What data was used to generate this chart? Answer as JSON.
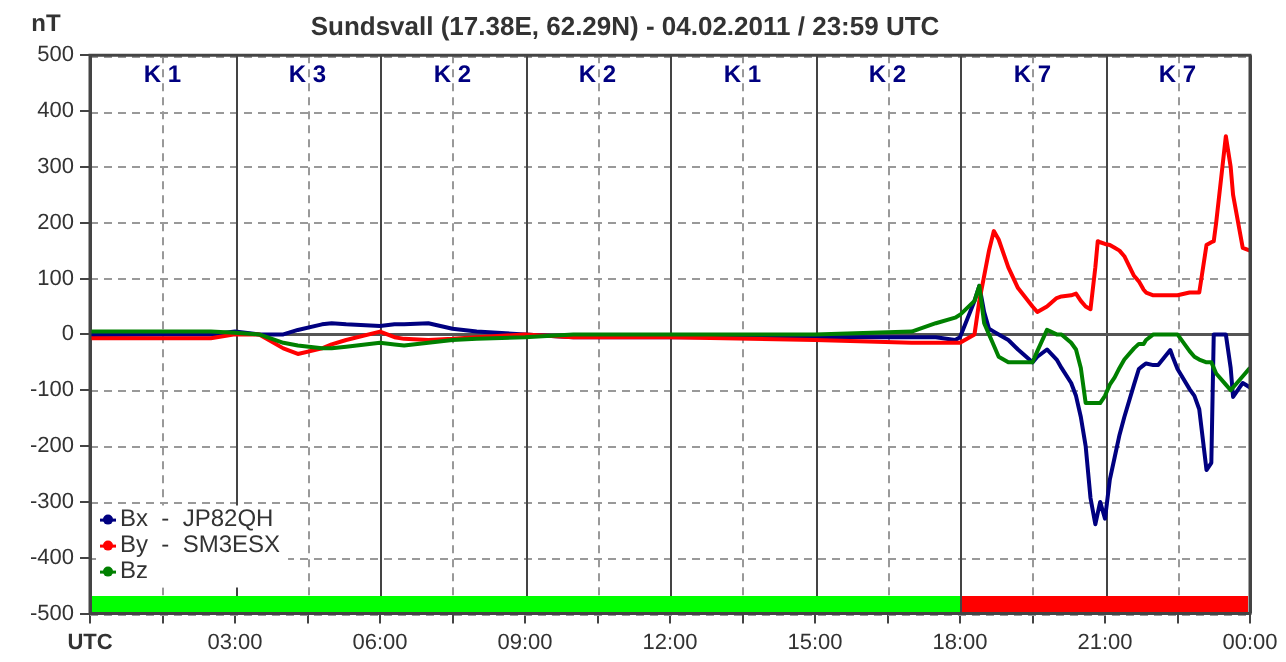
{
  "chart_data": {
    "type": "line",
    "title": "Sundsvall (17.38E, 62.29N) - 04.02.2011 / 23:59 UTC",
    "ylabel": "nT",
    "x": [
      0,
      1.5,
      2.5,
      3,
      3.5,
      4,
      4.3,
      4.8,
      5,
      5.3,
      6,
      6.3,
      6.5,
      7,
      7.5,
      8,
      9,
      10,
      12,
      15,
      17,
      17.5,
      17.9,
      18,
      18.3,
      18.4,
      18.5,
      18.6,
      18.7,
      18.8,
      19,
      19.2,
      19.5,
      19.6,
      19.8,
      20,
      20.1,
      20.3,
      20.4,
      20.5,
      20.6,
      20.7,
      20.8,
      20.85,
      20.9,
      21,
      21.1,
      21.2,
      21.3,
      21.4,
      21.6,
      21.7,
      21.8,
      21.85,
      22,
      22.1,
      22.35,
      22.4,
      22.5,
      22.75,
      22.85,
      22.95,
      23.1,
      23.2,
      23.25,
      23.3,
      23.5,
      23.6,
      23.65,
      23.85,
      24
    ],
    "series": [
      {
        "name": "Bx  -  JP82QH",
        "color": "#000080",
        "values": [
          -1,
          0,
          0,
          5,
          0,
          0,
          8,
          18,
          20,
          18,
          15,
          18,
          18,
          20,
          10,
          5,
          0,
          -5,
          -5,
          -5,
          -5,
          -5,
          -10,
          -5,
          60,
          87,
          40,
          10,
          5,
          0,
          -10,
          -27,
          -50,
          -40,
          -27,
          -45,
          -60,
          -87,
          -110,
          -148,
          -200,
          -293,
          -340,
          -320,
          -300,
          -330,
          -260,
          -220,
          -180,
          -148,
          -90,
          -62,
          -55,
          -52,
          -55,
          -55,
          -28,
          -40,
          -62,
          -98,
          -110,
          -134,
          -243,
          -230,
          0,
          0,
          0,
          -60,
          -112,
          -87,
          -95
        ]
      },
      {
        "name": "By  -  SM3ESX",
        "color": "#ff0000",
        "values": [
          -7,
          -7,
          -7,
          0,
          0,
          -25,
          -35,
          -25,
          -18,
          -10,
          5,
          -5,
          -8,
          -10,
          -8,
          -5,
          0,
          -5,
          -5,
          -10,
          -15,
          -15,
          -15,
          -15,
          0,
          60,
          105,
          150,
          185,
          170,
          120,
          83,
          50,
          40,
          50,
          65,
          68,
          70,
          73,
          60,
          50,
          45,
          120,
          167,
          165,
          162,
          160,
          155,
          150,
          140,
          105,
          95,
          80,
          75,
          70,
          70,
          70,
          70,
          70,
          75,
          75,
          75,
          160,
          165,
          167,
          200,
          355,
          300,
          250,
          155,
          150
        ]
      },
      {
        "name": "Bz",
        "color": "#008000",
        "values": [
          5,
          5,
          5,
          3,
          0,
          -15,
          -20,
          -25,
          -25,
          -22,
          -15,
          -18,
          -20,
          -15,
          -10,
          -8,
          -5,
          0,
          0,
          0,
          5,
          20,
          30,
          35,
          60,
          87,
          20,
          0,
          -20,
          -40,
          -50,
          -50,
          -50,
          -30,
          8,
          0,
          0,
          -15,
          -27,
          -60,
          -123,
          -123,
          -123,
          -123,
          -123,
          -110,
          -90,
          -77,
          -60,
          -45,
          -25,
          -17,
          -17,
          -10,
          0,
          0,
          0,
          0,
          0,
          -30,
          -40,
          -45,
          -50,
          -50,
          -60,
          -70,
          -90,
          -100,
          -95,
          -75,
          -60
        ]
      }
    ],
    "xlim": [
      0,
      24
    ],
    "xticks": [
      {
        "value": 0,
        "label": "UTC"
      },
      {
        "value": 1.5,
        "label": null
      },
      {
        "value": 3,
        "label": "03:00"
      },
      {
        "value": 4.5,
        "label": null
      },
      {
        "value": 6,
        "label": "06:00"
      },
      {
        "value": 7.5,
        "label": null
      },
      {
        "value": 9,
        "label": "09:00"
      },
      {
        "value": 10.5,
        "label": null
      },
      {
        "value": 12,
        "label": "12:00"
      },
      {
        "value": 13.5,
        "label": null
      },
      {
        "value": 15,
        "label": "15:00"
      },
      {
        "value": 16.5,
        "label": null
      },
      {
        "value": 18,
        "label": "18:00"
      },
      {
        "value": 19.5,
        "label": null
      },
      {
        "value": 21,
        "label": "21:00"
      },
      {
        "value": 22.5,
        "label": null
      },
      {
        "value": 24,
        "label": "00:00"
      }
    ],
    "ylim": [
      -500,
      500
    ],
    "yticks": [
      -500,
      -400,
      -300,
      -200,
      -100,
      0,
      100,
      200,
      300,
      400,
      500
    ],
    "grid": true,
    "legend": "bottom left",
    "marker": "none",
    "line_style": "solid",
    "ref_lines": [
      {
        "axis": "y",
        "value": 0,
        "color": "#555555"
      }
    ],
    "annotations": [
      "K 1",
      "K 3",
      "K 2",
      "K 2",
      "K 1",
      "K 2",
      "K 7",
      "K 7"
    ]
  }
}
